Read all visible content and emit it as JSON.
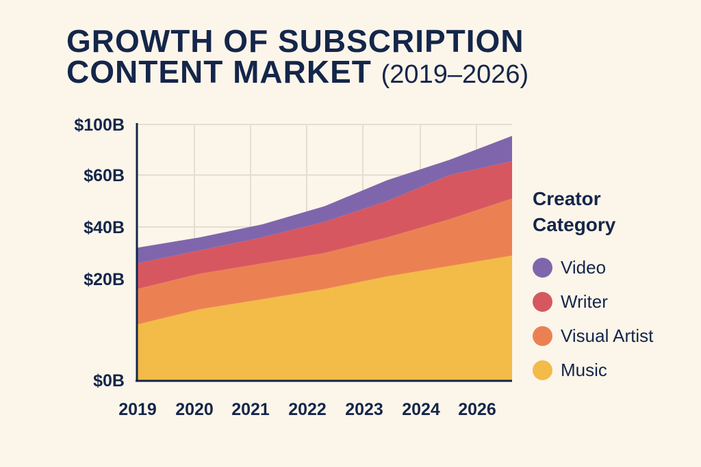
{
  "title": {
    "line1": "GROWTH OF SUBSCRIPTION",
    "line2": "CONTENT MARKET",
    "years": "(2019–2026)"
  },
  "chart_data": {
    "type": "area",
    "stacked": true,
    "title": "GROWTH OF SUBSCRIPTION CONTENT MARKET (2019–2026)",
    "categories": [
      "2019",
      "2020",
      "2021",
      "2022",
      "2023",
      "2024",
      "2026"
    ],
    "y_ticks": [
      {
        "label": "$0B",
        "value": 0
      },
      {
        "label": "$20B",
        "value": 20
      },
      {
        "label": "$40B",
        "value": 40
      },
      {
        "label": "$60B",
        "value": 60
      },
      {
        "label": "$100B",
        "value": 100
      }
    ],
    "series": [
      {
        "name": "Music",
        "color": "#f3bb47",
        "values": [
          11,
          14,
          16,
          18,
          21,
          25,
          29
        ]
      },
      {
        "name": "Visual Artist",
        "color": "#eb8153",
        "values": [
          7,
          8,
          10,
          12,
          15,
          18,
          22
        ]
      },
      {
        "name": "Writer",
        "color": "#d75760",
        "values": [
          8,
          9,
          10,
          12,
          14,
          17,
          20
        ]
      },
      {
        "name": "Video",
        "color": "#7f66ac",
        "values": [
          6,
          5,
          5,
          6,
          8,
          12,
          20
        ]
      }
    ],
    "legend": {
      "title_line1": "Creator",
      "title_line2": "Category",
      "placement": "right"
    },
    "grid": true
  }
}
